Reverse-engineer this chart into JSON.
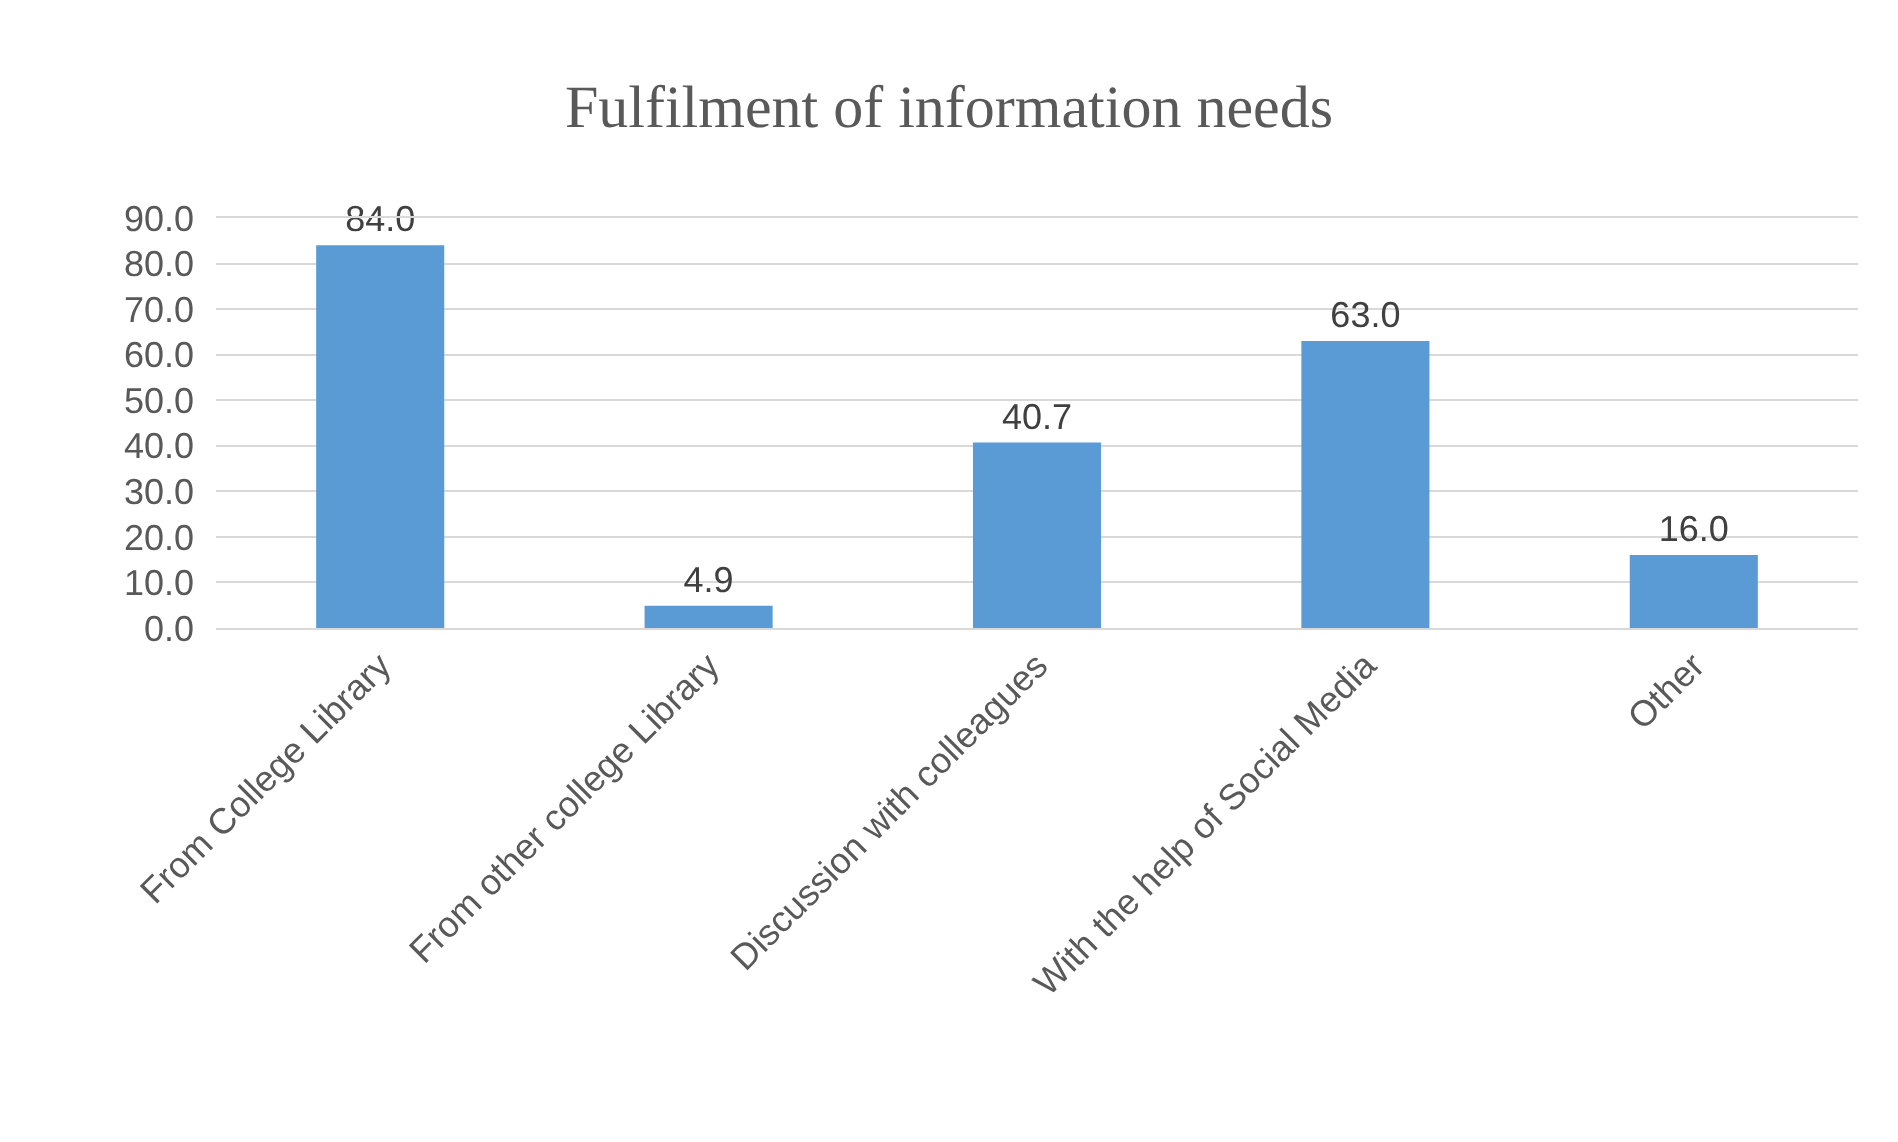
{
  "chart_data": {
    "type": "bar",
    "title": "Fulfilment of information needs",
    "categories": [
      "From College Library",
      "From other college Library",
      "Discussion with colleagues",
      "With the help of Social Media",
      "Other"
    ],
    "values": [
      84.0,
      4.9,
      40.7,
      63.0,
      16.0
    ],
    "color": "#5b9bd5",
    "value_labels": [
      "84.0",
      "4.9",
      "40.7",
      "63.0",
      "16.0"
    ],
    "ylim": [
      0,
      90
    ],
    "yticks": [
      {
        "value": 0,
        "label": "0.0"
      },
      {
        "value": 10,
        "label": "10.0"
      },
      {
        "value": 20,
        "label": "20.0"
      },
      {
        "value": 30,
        "label": "30.0"
      },
      {
        "value": 40,
        "label": "40.0"
      },
      {
        "value": 50,
        "label": "50.0"
      },
      {
        "value": 60,
        "label": "60.0"
      },
      {
        "value": 70,
        "label": "70.0"
      },
      {
        "value": 80,
        "label": "80.0"
      },
      {
        "value": 90,
        "label": "90.0"
      }
    ],
    "grid": "y"
  }
}
